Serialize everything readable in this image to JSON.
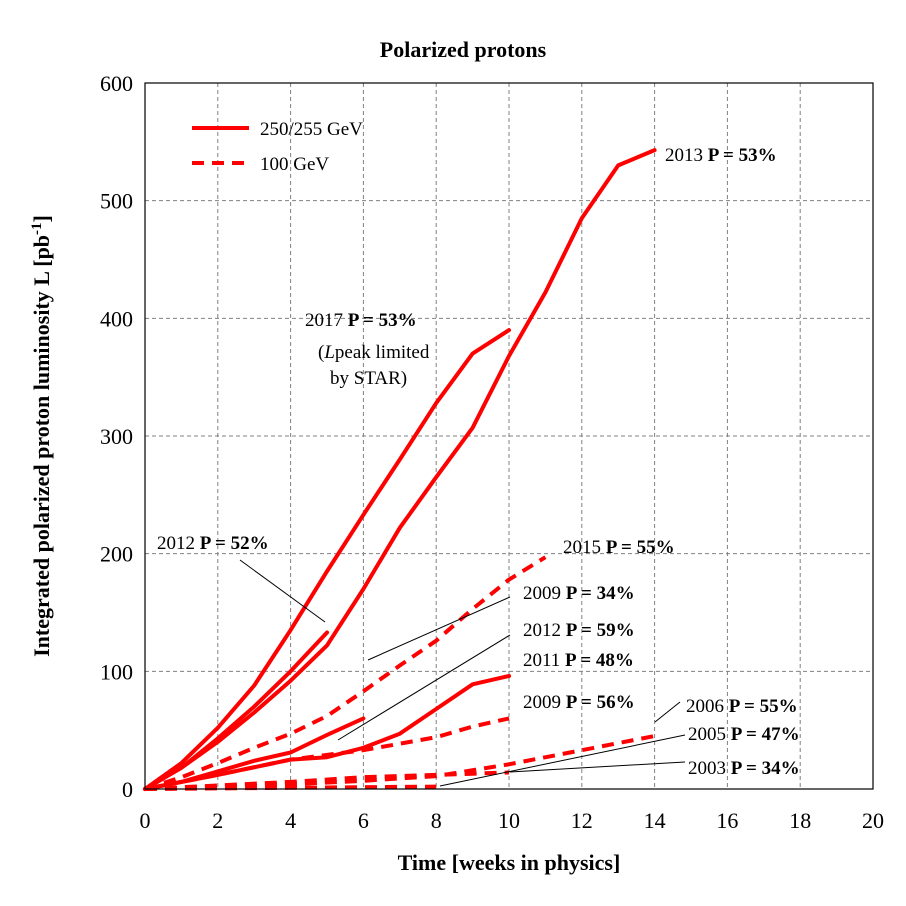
{
  "chart_data": {
    "type": "line",
    "title": "Polarized protons",
    "xlabel": "Time  [weeks in physics]",
    "ylabel": "Integrated polarized proton luminosity L [pb",
    "ylabel_sup": "-1",
    "ylabel_end": "]",
    "xlim": [
      0,
      20
    ],
    "ylim": [
      0,
      600
    ],
    "xticks": [
      "0",
      "2",
      "4",
      "6",
      "8",
      "10",
      "12",
      "14",
      "16",
      "18",
      "20"
    ],
    "yticks": [
      "0",
      "100",
      "200",
      "300",
      "400",
      "500",
      "600"
    ],
    "grid": true,
    "legend_position": "top-left",
    "legend": [
      {
        "label": "250/255 GeV",
        "style": "solid"
      },
      {
        "label": "100 GeV",
        "style": "dashed"
      }
    ],
    "color": "#ff0000",
    "series": [
      {
        "style": "solid",
        "x": [
          0,
          1,
          2,
          3,
          4,
          5,
          6,
          7,
          8,
          9,
          10,
          11,
          12,
          13,
          14
        ],
        "y": [
          0,
          18,
          40,
          65,
          92,
          122,
          170,
          222,
          265,
          307,
          368,
          422,
          485,
          530,
          543
        ]
      },
      {
        "style": "solid",
        "x": [
          0,
          1,
          2,
          3,
          4,
          5,
          6,
          7,
          8,
          9,
          10
        ],
        "y": [
          0,
          22,
          52,
          88,
          135,
          185,
          233,
          280,
          328,
          370,
          390
        ]
      },
      {
        "style": "solid",
        "x": [
          0,
          1,
          2,
          3,
          4,
          5
        ],
        "y": [
          0,
          18,
          43,
          70,
          100,
          133
        ]
      },
      {
        "style": "solid",
        "x": [
          0,
          2,
          4,
          5,
          6,
          7,
          8,
          9,
          10
        ],
        "y": [
          0,
          12,
          25,
          27,
          35,
          47,
          68,
          89,
          96
        ]
      },
      {
        "style": "solid",
        "x": [
          0,
          1,
          2,
          3,
          4,
          5,
          6
        ],
        "y": [
          0,
          6,
          15,
          24,
          31,
          46,
          60
        ]
      },
      {
        "style": "dashed",
        "x": [
          0,
          1,
          2,
          3,
          4,
          5,
          6,
          7,
          8,
          9,
          10,
          11
        ],
        "y": [
          0,
          10,
          22,
          35,
          47,
          62,
          83,
          105,
          126,
          153,
          178,
          197
        ]
      },
      {
        "style": "dashed",
        "x": [
          0,
          2,
          4,
          6,
          8,
          9,
          10
        ],
        "y": [
          0,
          12,
          25,
          33,
          44,
          53,
          60
        ]
      },
      {
        "style": "dashed",
        "x": [
          0,
          2,
          4,
          6,
          8,
          10,
          12,
          14
        ],
        "y": [
          0,
          2,
          4,
          7,
          11,
          21,
          33,
          45
        ]
      },
      {
        "style": "dashed",
        "x": [
          0,
          4,
          6,
          8,
          10
        ],
        "y": [
          0,
          6,
          10,
          12,
          14
        ]
      },
      {
        "style": "dashed",
        "x": [
          0,
          4,
          8
        ],
        "y": [
          0,
          1,
          2
        ]
      }
    ],
    "annotations": [
      {
        "year": "2013",
        "bold": "P = 53%"
      },
      {
        "year": "2017",
        "bold": "P = 53%",
        "note1_italic": "L",
        "note1_rest": "peak limited",
        "note2": "by STAR)",
        "note_open": "("
      },
      {
        "year": "2012",
        "bold": "P = 52%"
      },
      {
        "year": "2015",
        "bold": "P = 55%"
      },
      {
        "year": "2009",
        "bold": "P = 34%"
      },
      {
        "year": "2012",
        "bold": "P = 59%"
      },
      {
        "year": "2011",
        "bold": "P = 48%"
      },
      {
        "year": "2009",
        "bold": "P = 56%"
      },
      {
        "year": "2006",
        "bold": "P = 55%"
      },
      {
        "year": "2005",
        "bold": "P = 47%"
      },
      {
        "year": "2003",
        "bold": "P = 34%"
      }
    ]
  }
}
